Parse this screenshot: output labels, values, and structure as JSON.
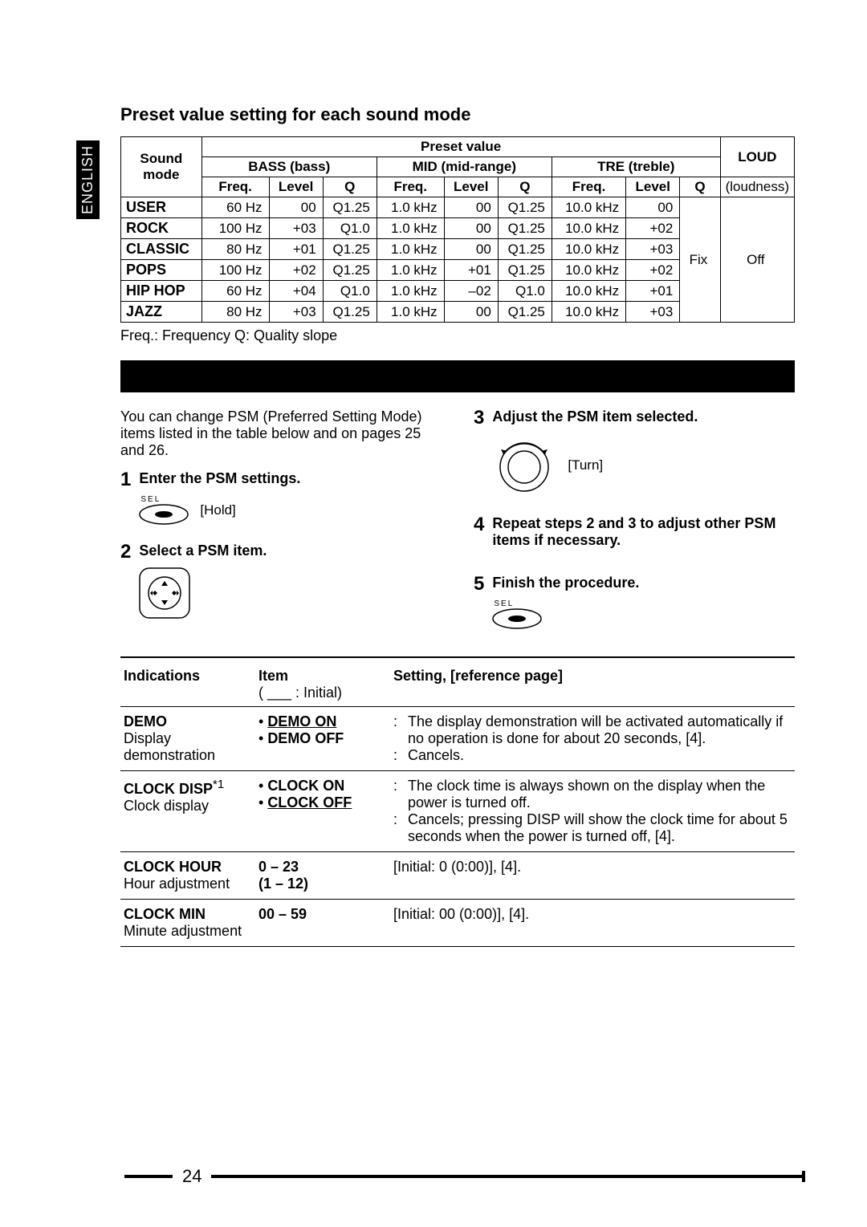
{
  "lang_tab": "ENGLISH",
  "title": "Preset value setting for each sound mode",
  "preset_table": {
    "sound_mode_hdr": "Sound mode",
    "preset_value_hdr": "Preset value",
    "loud_hdr": "LOUD",
    "loud_sub": "(loudness)",
    "bands": [
      {
        "bold": "BASS",
        "paren": "(bass)"
      },
      {
        "bold": "MID",
        "paren": "(mid-range)"
      },
      {
        "bold": "TRE",
        "paren": "(treble)"
      }
    ],
    "sub_hdrs": [
      "Freq.",
      "Level",
      "Q",
      "Freq.",
      "Level",
      "Q",
      "Freq.",
      "Level",
      "Q"
    ],
    "rows": [
      {
        "mode": "USER",
        "cells": [
          "60 Hz",
          "00",
          "Q1.25",
          "1.0 kHz",
          "00",
          "Q1.25",
          "10.0 kHz",
          "00"
        ]
      },
      {
        "mode": "ROCK",
        "cells": [
          "100 Hz",
          "+03",
          "Q1.0",
          "1.0 kHz",
          "00",
          "Q1.25",
          "10.0 kHz",
          "+02"
        ]
      },
      {
        "mode": "CLASSIC",
        "cells": [
          "80 Hz",
          "+01",
          "Q1.25",
          "1.0 kHz",
          "00",
          "Q1.25",
          "10.0 kHz",
          "+03"
        ]
      },
      {
        "mode": "POPS",
        "cells": [
          "100 Hz",
          "+02",
          "Q1.25",
          "1.0 kHz",
          "+01",
          "Q1.25",
          "10.0 kHz",
          "+02"
        ]
      },
      {
        "mode": "HIP HOP",
        "cells": [
          "60 Hz",
          "+04",
          "Q1.0",
          "1.0 kHz",
          "–02",
          "Q1.0",
          "10.0 kHz",
          "+01"
        ]
      },
      {
        "mode": "JAZZ",
        "cells": [
          "80 Hz",
          "+03",
          "Q1.25",
          "1.0 kHz",
          "00",
          "Q1.25",
          "10.0 kHz",
          "+03"
        ]
      }
    ],
    "tre_q": "Fix",
    "loud_val": "Off",
    "footnote": "Freq.: Frequency   Q: Quality slope"
  },
  "intro": "You can change PSM (Preferred Setting Mode) items listed in the table below and on pages 25 and 26.",
  "steps": {
    "s1": {
      "num": "1",
      "title": "Enter the PSM settings.",
      "sel": "SEL",
      "cap": "[Hold]"
    },
    "s2": {
      "num": "2",
      "title": "Select a PSM item."
    },
    "s3": {
      "num": "3",
      "title": "Adjust the PSM item selected.",
      "cap": "[Turn]"
    },
    "s4": {
      "num": "4",
      "title": "Repeat steps 2 and 3 to adjust other PSM items if necessary."
    },
    "s5": {
      "num": "5",
      "title": "Finish the procedure.",
      "sel": "SEL"
    }
  },
  "psm_table": {
    "hdr_indications": "Indications",
    "hdr_item": "Item",
    "hdr_item_note": "( ___ : Initial)",
    "hdr_setting": "Setting, [reference page]",
    "rows": [
      {
        "ind_bold": "DEMO",
        "ind_sub": "Display demonstration",
        "items": [
          "DEMO ON",
          "DEMO OFF"
        ],
        "item_initial_idx": 0,
        "settings": [
          "The display demonstration will be activated automatically if no operation is done for about 20 seconds, [4].",
          "Cancels."
        ]
      },
      {
        "ind_bold": "CLOCK DISP",
        "ind_sup": "*1",
        "ind_sub": "Clock display",
        "items": [
          "CLOCK ON",
          "CLOCK OFF"
        ],
        "item_initial_idx": 1,
        "settings": [
          "The clock time is always shown on the display when the power is turned off.",
          "Cancels; pressing DISP will show the clock time for about 5 seconds when the power is turned off, [4]."
        ]
      },
      {
        "ind_bold": "CLOCK HOUR",
        "ind_sub": "Hour adjustment",
        "item_plain": "0 – 23\n(1 – 12)",
        "setting_plain": "[Initial: 0 (0:00)], [4]."
      },
      {
        "ind_bold": "CLOCK MIN",
        "ind_sub": "Minute adjustment",
        "item_plain": "00 – 59",
        "setting_plain": "[Initial: 00 (0:00)], [4]."
      }
    ]
  },
  "page_num": "24"
}
